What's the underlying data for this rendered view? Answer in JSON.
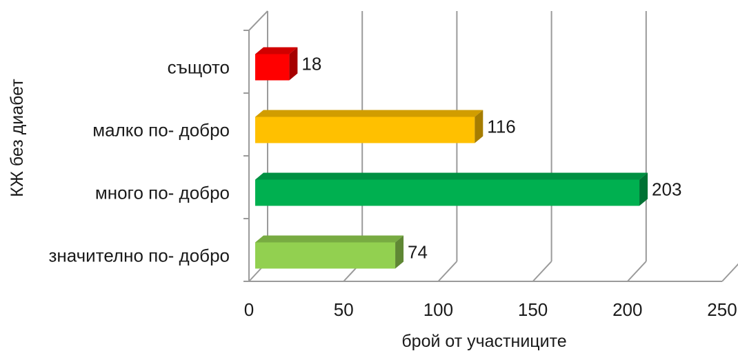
{
  "chart_data": {
    "type": "bar",
    "orientation": "horizontal",
    "style": "3d",
    "categories": [
      "същото",
      "малко по- добро",
      "много по- добро",
      "значително по- добро"
    ],
    "values": [
      18,
      116,
      203,
      74
    ],
    "colors": [
      "#ff0000",
      "#ffc000",
      "#00b050",
      "#92d050"
    ],
    "xlabel": "брой от участниците",
    "ylabel": "КЖ без диабет",
    "xlim": [
      0,
      250
    ],
    "xticks": [
      0,
      50,
      100,
      150,
      200,
      250
    ],
    "grid": true,
    "legend": "none"
  }
}
